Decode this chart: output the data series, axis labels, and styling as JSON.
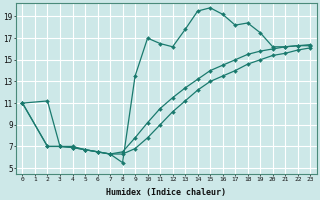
{
  "xlabel": "Humidex (Indice chaleur)",
  "ylabel": "",
  "bg_color": "#cde8e8",
  "grid_color": "#b8d8d8",
  "line_color": "#1a7a6e",
  "xlim": [
    -0.5,
    23.5
  ],
  "ylim": [
    4.5,
    20.2
  ],
  "xticks": [
    0,
    1,
    2,
    3,
    4,
    5,
    6,
    7,
    8,
    9,
    10,
    11,
    12,
    13,
    14,
    15,
    16,
    17,
    18,
    19,
    20,
    21,
    22,
    23
  ],
  "yticks": [
    5,
    7,
    9,
    11,
    13,
    15,
    17,
    19
  ],
  "lines": [
    {
      "x": [
        0,
        2,
        3,
        4,
        5,
        6,
        7,
        8,
        9,
        10,
        11,
        12,
        13,
        14,
        15,
        16,
        17,
        18,
        19,
        20,
        21,
        22,
        23
      ],
      "y": [
        11.0,
        11.2,
        7.0,
        7.0,
        6.7,
        6.5,
        6.3,
        5.5,
        13.5,
        17.0,
        16.5,
        16.2,
        17.8,
        19.5,
        19.8,
        19.2,
        18.2,
        18.4,
        17.5,
        16.2,
        16.2,
        16.3,
        16.3
      ]
    },
    {
      "x": [
        0,
        2,
        3,
        4,
        5,
        6,
        7,
        8,
        9,
        10,
        11,
        12,
        13,
        14,
        15,
        16,
        17,
        18,
        19,
        20,
        21,
        22,
        23
      ],
      "y": [
        11.0,
        7.0,
        7.0,
        6.9,
        6.7,
        6.5,
        6.3,
        6.5,
        7.8,
        9.2,
        10.5,
        11.5,
        12.4,
        13.2,
        14.0,
        14.5,
        15.0,
        15.5,
        15.8,
        16.0,
        16.2,
        16.3,
        16.4
      ]
    },
    {
      "x": [
        0,
        2,
        3,
        4,
        5,
        6,
        7,
        8,
        9,
        10,
        11,
        12,
        13,
        14,
        15,
        16,
        17,
        18,
        19,
        20,
        21,
        22,
        23
      ],
      "y": [
        11.0,
        7.0,
        7.0,
        6.9,
        6.7,
        6.5,
        6.3,
        6.3,
        6.8,
        7.8,
        9.0,
        10.2,
        11.2,
        12.2,
        13.0,
        13.5,
        14.0,
        14.6,
        15.0,
        15.4,
        15.6,
        15.9,
        16.1
      ]
    }
  ]
}
